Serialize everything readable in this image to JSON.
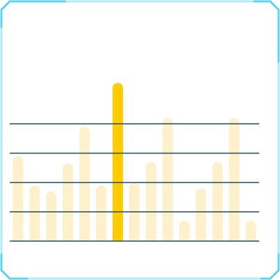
{
  "chart_data": {
    "type": "bar",
    "categories": [
      null,
      null,
      null,
      null,
      null,
      null,
      null,
      null,
      null,
      null,
      null,
      null,
      null,
      null,
      null
    ],
    "values": [
      2.9,
      1.9,
      1.7,
      2.65,
      3.9,
      1.9,
      5.4,
      2.0,
      2.7,
      4.2,
      0.7,
      1.8,
      2.7,
      4.2,
      0.7
    ],
    "colors": [
      "#fdf1cb",
      "#fdf1cb",
      "#fdf1cb",
      "#fdf1cb",
      "#fdf1cb",
      "#fdf1cb",
      "#ffcc00",
      "#fdf1cb",
      "#fdf1cb",
      "#fdf1cb",
      "#fdf1cb",
      "#fdf1cb",
      "#fdf1cb",
      "#fdf1cb",
      "#fdf1cb"
    ],
    "ylim": [
      0,
      5.5
    ],
    "yticks": [
      0,
      1,
      2,
      3,
      4
    ],
    "grid": true,
    "grid_color": "#1f4a5a"
  }
}
